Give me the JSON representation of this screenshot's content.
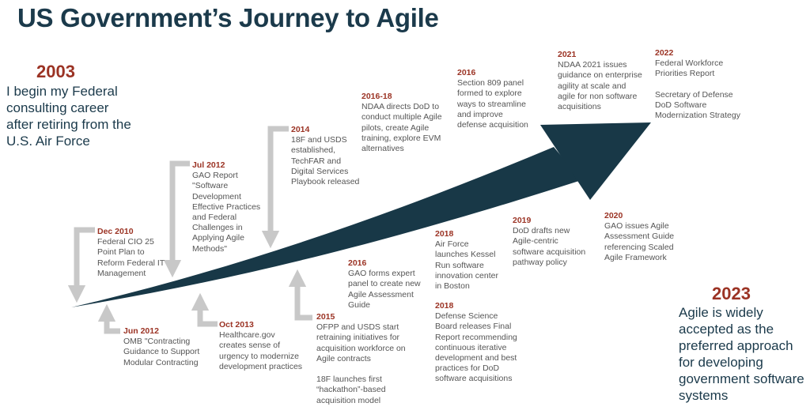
{
  "title": "US Government’s Journey to Agile",
  "start": {
    "year": "2003",
    "text": "I begin my Federal consulting career after retiring from the U.S. Air Force"
  },
  "end": {
    "year": "2023",
    "text": "Agile is widely accepted as the preferred approach for developing government software systems"
  },
  "events": [
    {
      "year": "Dec 2010",
      "text": "Federal CIO 25\nPoint Plan to\nReform Federal IT\nManagement"
    },
    {
      "year": "Jun 2012",
      "text": "OMB \"Contracting\nGuidance to Support\nModular Contracting"
    },
    {
      "year": "Jul 2012",
      "text": "GAO Report\n\"Software\nDevelopment\nEffective Practices\nand Federal\nChallenges in\nApplying Agile\nMethods\""
    },
    {
      "year": "Oct 2013",
      "text": "Healthcare.gov\ncreates sense of\nurgency to modernize\ndevelopment practices"
    },
    {
      "year": "2014",
      "text": "18F and USDS\nestablished,\nTechFAR and\nDigital Services\nPlaybook released"
    },
    {
      "year": "2015",
      "text": "OFPP and USDS start\nretraining initiatives for\nacquisition workforce on\nAgile contracts\n\n18F launches first\n“hackathon”-based\nacquisition model"
    },
    {
      "year": "2016",
      "text": "GAO forms expert\npanel to create new\nAgile Assessment\nGuide"
    },
    {
      "year": "2016-18",
      "text": "NDAA directs DoD to\nconduct multiple Agile\npilots, create Agile\ntraining, explore EVM\nalternatives"
    },
    {
      "year": "2016",
      "text": "Section 809 panel\nformed to explore\nways to streamline\nand improve\ndefense acquisition"
    },
    {
      "year": "2018",
      "text": "Air Force\nlaunches Kessel\nRun software\ninnovation center\nin Boston"
    },
    {
      "year": "2018",
      "text": "Defense Science\nBoard releases Final\nReport recommending\ncontinuous iterative\ndevelopment and best\npractices for DoD\nsoftware acquisitions"
    },
    {
      "year": "2019",
      "text": "DoD drafts new\nAgile-centric\nsoftware acquisition\npathway policy"
    },
    {
      "year": "2020",
      "text": "GAO issues Agile\nAssessment Guide\nreferencing Scaled\nAgile Framework"
    },
    {
      "year": "2021",
      "text": "NDAA 2021 issues\nguidance on enterprise\nagility at scale and\nagile for non software\nacquisitions"
    },
    {
      "year": "2022",
      "text": "Federal Workforce\nPriorities Report\n\nSecretary of Defense\nDoD Software\nModernization Strategy"
    }
  ],
  "colors": {
    "arrow": "#183847",
    "year": "#9b3324",
    "connector": "#c8c8c8",
    "title": "#1b3a4b"
  }
}
